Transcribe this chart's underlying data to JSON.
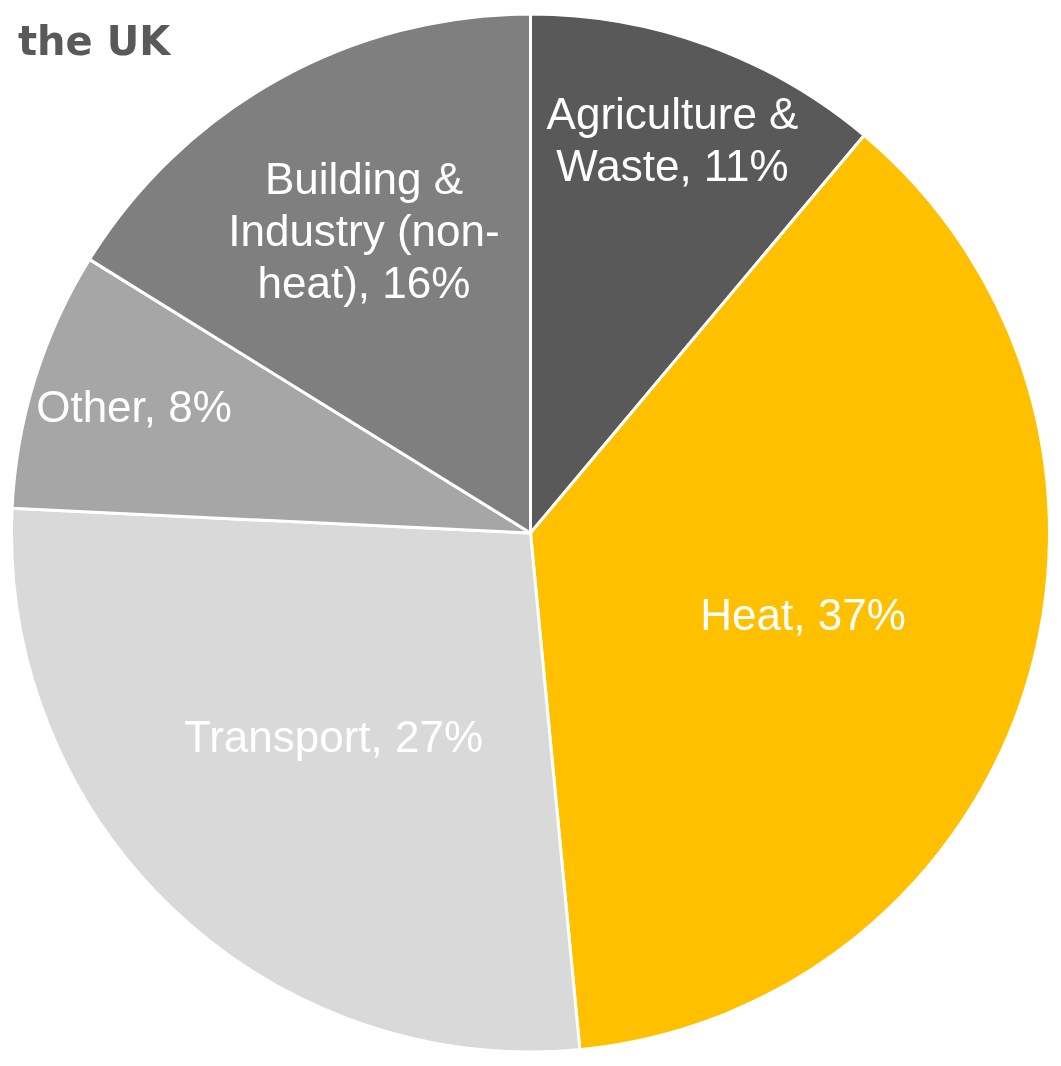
{
  "chart_data": {
    "type": "pie",
    "title": "the UK",
    "categories": [
      "Agriculture & Waste",
      "Heat",
      "Transport",
      "Other",
      "Building & Industry (non-heat)"
    ],
    "values": [
      11,
      37,
      27,
      8,
      16
    ],
    "value_labels": [
      "11%",
      "37%",
      "27%",
      "8%",
      "16%"
    ],
    "colors": [
      "#595959",
      "#ffc000",
      "#d9d9d9",
      "#a6a6a6",
      "#7f7f7f"
    ],
    "legend": false
  }
}
